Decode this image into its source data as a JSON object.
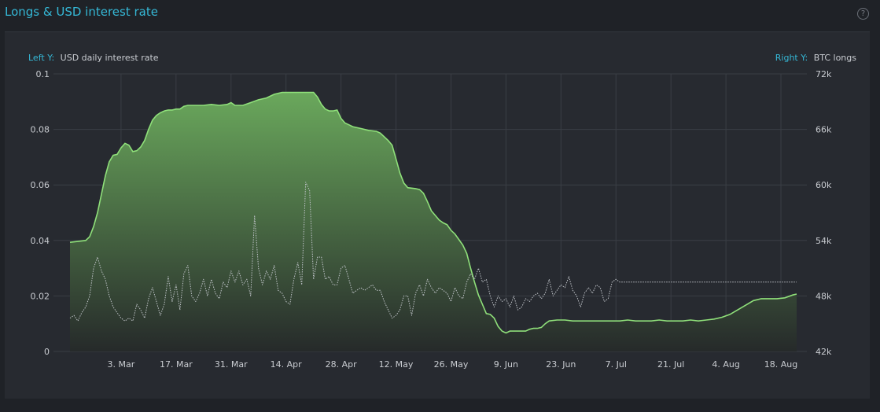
{
  "panel": {
    "title": "Longs & USD interest rate",
    "help_icon": "question-circle-icon"
  },
  "colors": {
    "title": "#35b8d6",
    "accent": "#35b8d6",
    "area_line": "#8fe07a",
    "area_fill_top": "#6aa85c",
    "area_fill_bottom": "#262a2a",
    "rate_line": "#bfc3c8",
    "background": "#272a30"
  },
  "chart_data": {
    "type": "area",
    "left_axis": {
      "caption_prefix": "Left Y:",
      "label": "USD daily interest rate",
      "ticks": [
        "0.1",
        "0.08",
        "0.06",
        "0.04",
        "0.02",
        "0"
      ],
      "range": [
        0,
        0.1
      ]
    },
    "right_axis": {
      "caption_prefix": "Right Y:",
      "label": "BTC longs",
      "ticks": [
        "72k",
        "66k",
        "60k",
        "54k",
        "48k",
        "42k"
      ],
      "range": [
        42000,
        72000
      ]
    },
    "x_ticks": [
      "3. Mar",
      "17. Mar",
      "31. Mar",
      "14. Apr",
      "28. Apr",
      "12. May",
      "26. May",
      "9. Jun",
      "23. Jun",
      "7. Jul",
      "21. Jul",
      "4. Aug",
      "18. Aug"
    ],
    "x_tick_days": [
      13,
      27,
      41,
      55,
      69,
      83,
      97,
      111,
      125,
      139,
      153,
      167,
      181
    ],
    "grid": true,
    "series": [
      {
        "name": "BTC longs",
        "style": "area",
        "axis": "right",
        "points": [
          [
            0,
            53800
          ],
          [
            4,
            54000
          ],
          [
            5,
            54400
          ],
          [
            6,
            55500
          ],
          [
            7,
            57000
          ],
          [
            8,
            59000
          ],
          [
            9,
            61000
          ],
          [
            10,
            62500
          ],
          [
            11,
            63200
          ],
          [
            12,
            63300
          ],
          [
            13,
            64000
          ],
          [
            14,
            64500
          ],
          [
            15,
            64300
          ],
          [
            16,
            63600
          ],
          [
            17,
            63700
          ],
          [
            18,
            64100
          ],
          [
            19,
            64800
          ],
          [
            20,
            66000
          ],
          [
            21,
            67000
          ],
          [
            22,
            67500
          ],
          [
            23,
            67800
          ],
          [
            24,
            68000
          ],
          [
            25,
            68100
          ],
          [
            26,
            68100
          ],
          [
            27,
            68200
          ],
          [
            28,
            68200
          ],
          [
            29,
            68500
          ],
          [
            30,
            68600
          ],
          [
            32,
            68600
          ],
          [
            34,
            68600
          ],
          [
            36,
            68700
          ],
          [
            38,
            68600
          ],
          [
            40,
            68700
          ],
          [
            41,
            68900
          ],
          [
            42,
            68600
          ],
          [
            44,
            68600
          ],
          [
            46,
            68900
          ],
          [
            48,
            69200
          ],
          [
            50,
            69400
          ],
          [
            52,
            69800
          ],
          [
            54,
            70000
          ],
          [
            56,
            70000
          ],
          [
            58,
            70000
          ],
          [
            60,
            70000
          ],
          [
            62,
            70000
          ],
          [
            63,
            69500
          ],
          [
            64,
            68700
          ],
          [
            65,
            68200
          ],
          [
            66,
            68000
          ],
          [
            67,
            68000
          ],
          [
            68,
            68100
          ],
          [
            69,
            67200
          ],
          [
            70,
            66700
          ],
          [
            71,
            66500
          ],
          [
            72,
            66300
          ],
          [
            74,
            66100
          ],
          [
            76,
            65900
          ],
          [
            78,
            65800
          ],
          [
            79,
            65600
          ],
          [
            80,
            65200
          ],
          [
            81,
            64800
          ],
          [
            82,
            64300
          ],
          [
            83,
            62800
          ],
          [
            84,
            61300
          ],
          [
            85,
            60200
          ],
          [
            86,
            59700
          ],
          [
            88,
            59600
          ],
          [
            89,
            59500
          ],
          [
            90,
            59100
          ],
          [
            91,
            58200
          ],
          [
            92,
            57200
          ],
          [
            93,
            56700
          ],
          [
            94,
            56200
          ],
          [
            95,
            55900
          ],
          [
            96,
            55700
          ],
          [
            97,
            55100
          ],
          [
            98,
            54700
          ],
          [
            99,
            54100
          ],
          [
            100,
            53500
          ],
          [
            101,
            52600
          ],
          [
            102,
            51000
          ],
          [
            103,
            49500
          ],
          [
            104,
            48100
          ],
          [
            105,
            47100
          ],
          [
            106,
            46100
          ],
          [
            107,
            46000
          ],
          [
            108,
            45600
          ],
          [
            109,
            44700
          ],
          [
            110,
            44200
          ],
          [
            111,
            44000
          ],
          [
            112,
            44200
          ],
          [
            114,
            44200
          ],
          [
            116,
            44200
          ],
          [
            117,
            44400
          ],
          [
            118,
            44500
          ],
          [
            119,
            44500
          ],
          [
            120,
            44600
          ],
          [
            121,
            45000
          ],
          [
            122,
            45300
          ],
          [
            124,
            45400
          ],
          [
            126,
            45400
          ],
          [
            128,
            45300
          ],
          [
            130,
            45300
          ],
          [
            132,
            45300
          ],
          [
            134,
            45300
          ],
          [
            136,
            45300
          ],
          [
            138,
            45300
          ],
          [
            140,
            45300
          ],
          [
            142,
            45400
          ],
          [
            144,
            45300
          ],
          [
            146,
            45300
          ],
          [
            148,
            45300
          ],
          [
            150,
            45400
          ],
          [
            152,
            45300
          ],
          [
            154,
            45300
          ],
          [
            156,
            45300
          ],
          [
            158,
            45400
          ],
          [
            160,
            45300
          ],
          [
            162,
            45400
          ],
          [
            164,
            45500
          ],
          [
            166,
            45700
          ],
          [
            168,
            46000
          ],
          [
            170,
            46500
          ],
          [
            172,
            47000
          ],
          [
            174,
            47500
          ],
          [
            176,
            47700
          ],
          [
            178,
            47700
          ],
          [
            180,
            47700
          ],
          [
            182,
            47800
          ],
          [
            184,
            48100
          ],
          [
            185,
            48200
          ]
        ]
      },
      {
        "name": "USD daily interest rate",
        "style": "dotted-line",
        "axis": "left",
        "points": [
          [
            0,
            0.012
          ],
          [
            1,
            0.013
          ],
          [
            2,
            0.011
          ],
          [
            3,
            0.014
          ],
          [
            4,
            0.016
          ],
          [
            5,
            0.02
          ],
          [
            6,
            0.03
          ],
          [
            7,
            0.034
          ],
          [
            8,
            0.029
          ],
          [
            9,
            0.026
          ],
          [
            10,
            0.02
          ],
          [
            11,
            0.016
          ],
          [
            12,
            0.014
          ],
          [
            13,
            0.012
          ],
          [
            14,
            0.011
          ],
          [
            15,
            0.012
          ],
          [
            16,
            0.011
          ],
          [
            17,
            0.017
          ],
          [
            18,
            0.015
          ],
          [
            19,
            0.012
          ],
          [
            20,
            0.019
          ],
          [
            21,
            0.023
          ],
          [
            22,
            0.018
          ],
          [
            23,
            0.013
          ],
          [
            24,
            0.017
          ],
          [
            25,
            0.027
          ],
          [
            26,
            0.018
          ],
          [
            27,
            0.024
          ],
          [
            28,
            0.015
          ],
          [
            29,
            0.028
          ],
          [
            30,
            0.031
          ],
          [
            31,
            0.02
          ],
          [
            32,
            0.018
          ],
          [
            33,
            0.021
          ],
          [
            34,
            0.026
          ],
          [
            35,
            0.02
          ],
          [
            36,
            0.026
          ],
          [
            37,
            0.021
          ],
          [
            38,
            0.019
          ],
          [
            39,
            0.025
          ],
          [
            40,
            0.023
          ],
          [
            41,
            0.029
          ],
          [
            42,
            0.025
          ],
          [
            43,
            0.029
          ],
          [
            44,
            0.024
          ],
          [
            45,
            0.026
          ],
          [
            46,
            0.02
          ],
          [
            47,
            0.049
          ],
          [
            48,
            0.03
          ],
          [
            49,
            0.024
          ],
          [
            50,
            0.029
          ],
          [
            51,
            0.026
          ],
          [
            52,
            0.031
          ],
          [
            53,
            0.022
          ],
          [
            54,
            0.021
          ],
          [
            55,
            0.018
          ],
          [
            56,
            0.017
          ],
          [
            57,
            0.026
          ],
          [
            58,
            0.032
          ],
          [
            59,
            0.024
          ],
          [
            60,
            0.061
          ],
          [
            61,
            0.058
          ],
          [
            62,
            0.026
          ],
          [
            63,
            0.034
          ],
          [
            64,
            0.034
          ],
          [
            65,
            0.026
          ],
          [
            66,
            0.027
          ],
          [
            67,
            0.024
          ],
          [
            68,
            0.024
          ],
          [
            69,
            0.03
          ],
          [
            70,
            0.031
          ],
          [
            71,
            0.026
          ],
          [
            72,
            0.021
          ],
          [
            73,
            0.022
          ],
          [
            74,
            0.023
          ],
          [
            75,
            0.022
          ],
          [
            76,
            0.023
          ],
          [
            77,
            0.024
          ],
          [
            78,
            0.022
          ],
          [
            79,
            0.022
          ],
          [
            80,
            0.018
          ],
          [
            81,
            0.015
          ],
          [
            82,
            0.012
          ],
          [
            83,
            0.013
          ],
          [
            84,
            0.015
          ],
          [
            85,
            0.02
          ],
          [
            86,
            0.02
          ],
          [
            87,
            0.013
          ],
          [
            88,
            0.021
          ],
          [
            89,
            0.024
          ],
          [
            90,
            0.02
          ],
          [
            91,
            0.026
          ],
          [
            92,
            0.023
          ],
          [
            93,
            0.021
          ],
          [
            94,
            0.023
          ],
          [
            95,
            0.022
          ],
          [
            96,
            0.021
          ],
          [
            97,
            0.018
          ],
          [
            98,
            0.023
          ],
          [
            99,
            0.02
          ],
          [
            100,
            0.019
          ],
          [
            101,
            0.025
          ],
          [
            102,
            0.028
          ],
          [
            103,
            0.026
          ],
          [
            104,
            0.03
          ],
          [
            105,
            0.025
          ],
          [
            106,
            0.026
          ],
          [
            107,
            0.02
          ],
          [
            108,
            0.016
          ],
          [
            109,
            0.02
          ],
          [
            110,
            0.018
          ],
          [
            111,
            0.019
          ],
          [
            112,
            0.016
          ],
          [
            113,
            0.02
          ],
          [
            114,
            0.015
          ],
          [
            115,
            0.016
          ],
          [
            116,
            0.019
          ],
          [
            117,
            0.018
          ],
          [
            118,
            0.02
          ],
          [
            119,
            0.021
          ],
          [
            120,
            0.019
          ],
          [
            121,
            0.021
          ],
          [
            122,
            0.026
          ],
          [
            123,
            0.02
          ],
          [
            124,
            0.022
          ],
          [
            125,
            0.024
          ],
          [
            126,
            0.023
          ],
          [
            127,
            0.027
          ],
          [
            128,
            0.022
          ],
          [
            129,
            0.02
          ],
          [
            130,
            0.016
          ],
          [
            131,
            0.021
          ],
          [
            132,
            0.023
          ],
          [
            133,
            0.021
          ],
          [
            134,
            0.024
          ],
          [
            135,
            0.023
          ],
          [
            136,
            0.018
          ],
          [
            137,
            0.019
          ],
          [
            138,
            0.025
          ],
          [
            139,
            0.026
          ],
          [
            140,
            0.025
          ],
          [
            150,
            0.025
          ],
          [
            160,
            0.025
          ],
          [
            170,
            0.025
          ],
          [
            180,
            0.025
          ],
          [
            185,
            0.025
          ]
        ]
      }
    ]
  }
}
